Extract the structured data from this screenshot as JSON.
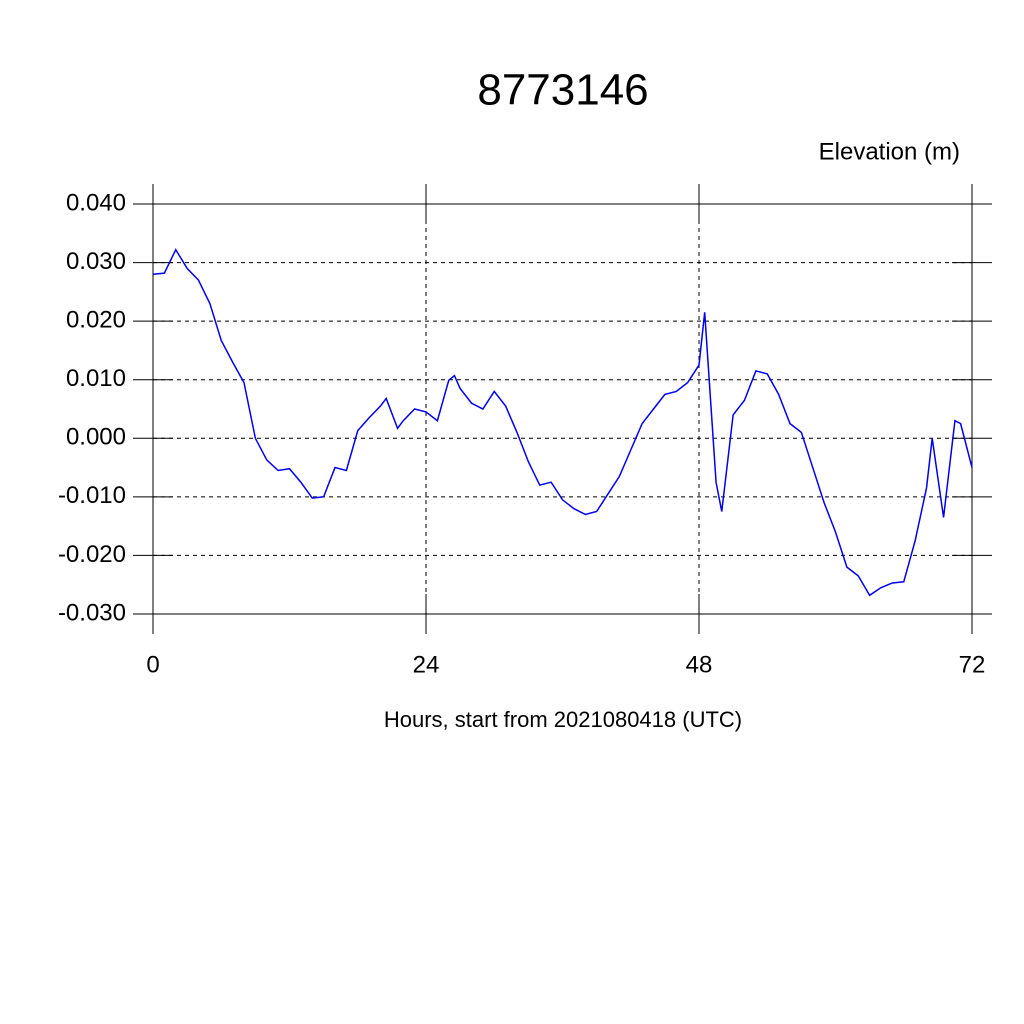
{
  "chart_data": {
    "type": "line",
    "title": "8773146",
    "subtitle": "Elevation (m)",
    "xlabel": "Hours, start from 2021080418 (UTC)",
    "x": [
      0,
      1,
      2,
      3,
      4,
      5,
      6,
      7,
      8,
      9,
      10,
      11,
      12,
      13,
      14,
      15,
      16,
      17,
      18,
      19,
      20,
      20.5,
      21.5,
      22,
      23,
      24,
      25,
      26,
      26.5,
      27,
      28,
      29,
      30,
      31,
      32,
      33,
      34,
      35,
      36,
      37,
      38,
      39,
      40,
      41,
      42,
      43,
      44,
      45,
      46,
      47,
      48,
      48.5,
      49.5,
      50,
      51,
      52,
      53,
      54,
      55,
      56,
      57,
      58,
      59,
      60,
      61,
      62,
      63,
      64,
      65,
      66,
      67,
      68,
      68.5,
      69.5,
      70.5,
      71,
      72
    ],
    "series": [
      {
        "name": "Elevation",
        "color": "#0000ee",
        "values": [
          0.028,
          0.0282,
          0.0322,
          0.029,
          0.027,
          0.023,
          0.0167,
          0.013,
          0.0095,
          0.0,
          -0.0037,
          -0.0055,
          -0.0052,
          -0.0075,
          -0.0102,
          -0.01,
          -0.005,
          -0.0055,
          0.0013,
          0.0035,
          0.0055,
          0.0068,
          0.0017,
          0.003,
          0.005,
          0.0045,
          0.003,
          0.0099,
          0.0107,
          0.0085,
          0.006,
          0.005,
          0.008,
          0.0055,
          0.001,
          -0.004,
          -0.008,
          -0.0075,
          -0.0105,
          -0.012,
          -0.013,
          -0.0125,
          -0.0095,
          -0.0065,
          -0.002,
          0.0025,
          0.005,
          0.0075,
          0.008,
          0.0095,
          0.0125,
          0.0215,
          -0.0075,
          -0.0125,
          0.004,
          0.0065,
          0.0115,
          0.011,
          0.0075,
          0.0025,
          0.001,
          -0.005,
          -0.011,
          -0.016,
          -0.022,
          -0.0235,
          -0.0268,
          -0.0255,
          -0.0247,
          -0.0245,
          -0.0175,
          -0.0085,
          0.0,
          -0.0135,
          0.003,
          0.0025,
          -0.005
        ]
      }
    ],
    "xlim": [
      0,
      72
    ],
    "xticks": [
      0,
      24,
      48,
      72
    ],
    "ylim": [
      -0.03,
      0.04
    ],
    "yticks": [
      {
        "value": -0.03,
        "label": "-0.030"
      },
      {
        "value": -0.02,
        "label": "-0.020"
      },
      {
        "value": -0.01,
        "label": "-0.010"
      },
      {
        "value": 0,
        "label": "0.000"
      },
      {
        "value": 0.01,
        "label": "0.010"
      },
      {
        "value": 0.02,
        "label": "0.020"
      },
      {
        "value": 0.03,
        "label": "0.030"
      },
      {
        "value": 0.04,
        "label": "0.040"
      }
    ],
    "grid": true
  }
}
